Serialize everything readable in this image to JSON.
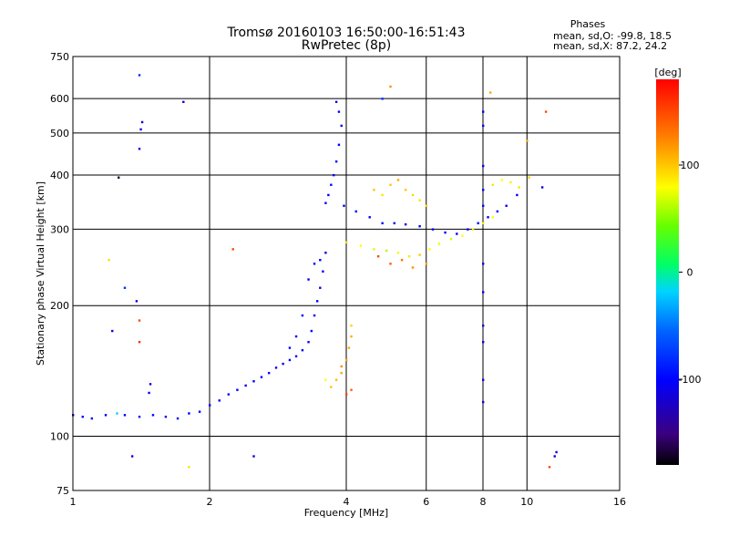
{
  "chart_data": {
    "type": "scatter",
    "title": "Tromsø 20160103 16:50:00-16:51:43",
    "subtitle": "RwPretec (8p)",
    "xlabel": "Frequency [MHz]",
    "ylabel": "Stationary phase Virtual Height [km]",
    "x_scale": "log2",
    "y_scale": "log",
    "xlim": [
      1,
      16
    ],
    "ylim": [
      75,
      750
    ],
    "x_ticks": [
      1,
      2,
      4,
      6,
      8,
      10,
      16
    ],
    "x_tick_labels": [
      "1",
      "2",
      "4",
      "6",
      "8",
      "10",
      "16"
    ],
    "y_ticks": [
      75,
      100,
      200,
      300,
      400,
      500,
      600,
      750
    ],
    "y_tick_labels": [
      "75",
      "100",
      "200",
      "300",
      "400",
      "500",
      "600",
      "750"
    ],
    "grid": true,
    "stats": {
      "heading": "Phases",
      "line_o": "mean, sd,O: -99.8, 18.5",
      "line_x": "mean, sd,X:  87.2, 24.2"
    },
    "colorbar": {
      "label": "[deg]",
      "min": -180,
      "max": 180,
      "ticks": [
        100,
        0,
        -100
      ],
      "tick_labels": [
        "100",
        "0",
        "-100"
      ]
    },
    "series": [
      {
        "points": [
          [
            1.0,
            112,
            -100
          ],
          [
            1.05,
            111,
            -100
          ],
          [
            1.1,
            110,
            -100
          ],
          [
            1.18,
            112,
            -100
          ],
          [
            1.25,
            113,
            -20
          ],
          [
            1.3,
            112,
            -100
          ],
          [
            1.4,
            111,
            -100
          ],
          [
            1.5,
            112,
            -100
          ],
          [
            1.6,
            111,
            -100
          ],
          [
            1.7,
            110,
            -100
          ],
          [
            1.8,
            113,
            -100
          ],
          [
            1.9,
            114,
            -100
          ],
          [
            2.0,
            118,
            -100
          ],
          [
            2.1,
            121,
            -100
          ],
          [
            2.2,
            125,
            -100
          ],
          [
            2.3,
            128,
            -100
          ],
          [
            2.4,
            131,
            -100
          ],
          [
            2.5,
            134,
            -100
          ],
          [
            2.6,
            137,
            -100
          ],
          [
            2.7,
            140,
            -100
          ],
          [
            2.8,
            144,
            -100
          ],
          [
            2.9,
            147,
            -100
          ],
          [
            3.0,
            150,
            -100
          ],
          [
            3.1,
            153,
            -100
          ],
          [
            3.2,
            158,
            -100
          ],
          [
            3.3,
            165,
            -100
          ],
          [
            3.35,
            175,
            -100
          ],
          [
            3.4,
            190,
            -100
          ],
          [
            3.45,
            205,
            -100
          ],
          [
            3.5,
            220,
            -100
          ],
          [
            3.55,
            240,
            -100
          ],
          [
            3.6,
            265,
            -110
          ],
          [
            3.2,
            190,
            -100
          ],
          [
            3.4,
            250,
            -100
          ],
          [
            3.5,
            255,
            -100
          ],
          [
            3.3,
            230,
            -100
          ],
          [
            3.6,
            345,
            -100
          ],
          [
            3.65,
            360,
            -100
          ],
          [
            3.7,
            380,
            -100
          ],
          [
            3.75,
            400,
            -100
          ],
          [
            3.8,
            430,
            -100
          ],
          [
            3.85,
            470,
            -100
          ],
          [
            3.9,
            520,
            -100
          ],
          [
            3.85,
            560,
            -100
          ],
          [
            3.95,
            340,
            -100
          ],
          [
            4.2,
            330,
            -100
          ],
          [
            4.5,
            320,
            -100
          ],
          [
            4.8,
            310,
            -100
          ],
          [
            5.1,
            310,
            -100
          ],
          [
            5.4,
            308,
            -100
          ],
          [
            5.8,
            305,
            -100
          ],
          [
            6.2,
            300,
            -100
          ],
          [
            6.6,
            295,
            -100
          ],
          [
            7.0,
            293,
            -100
          ],
          [
            7.4,
            300,
            -100
          ],
          [
            7.8,
            310,
            -100
          ],
          [
            8.2,
            320,
            -100
          ],
          [
            8.6,
            330,
            -100
          ],
          [
            9.0,
            340,
            -100
          ],
          [
            9.5,
            360,
            -100
          ],
          [
            4.0,
            280,
            90
          ],
          [
            4.3,
            275,
            80
          ],
          [
            4.6,
            270,
            70
          ],
          [
            4.9,
            268,
            60
          ],
          [
            5.2,
            265,
            75
          ],
          [
            5.5,
            260,
            90
          ],
          [
            5.8,
            262,
            100
          ],
          [
            6.1,
            270,
            80
          ],
          [
            6.4,
            278,
            75
          ],
          [
            6.8,
            285,
            70
          ],
          [
            7.2,
            290,
            80
          ],
          [
            7.6,
            300,
            90
          ],
          [
            8.0,
            310,
            85
          ],
          [
            8.4,
            320,
            80
          ],
          [
            4.7,
            260,
            150
          ],
          [
            5.0,
            250,
            140
          ],
          [
            5.3,
            255,
            130
          ],
          [
            5.6,
            245,
            120
          ],
          [
            6.0,
            250,
            110
          ],
          [
            3.7,
            130,
            100
          ],
          [
            3.8,
            135,
            105
          ],
          [
            3.9,
            140,
            110
          ],
          [
            4.0,
            150,
            110
          ],
          [
            4.05,
            160,
            110
          ],
          [
            4.1,
            170,
            110
          ],
          [
            4.0,
            125,
            150
          ],
          [
            4.1,
            128,
            140
          ],
          [
            3.6,
            135,
            80
          ],
          [
            3.9,
            145,
            120
          ],
          [
            4.1,
            180,
            95
          ],
          [
            4.6,
            370,
            100
          ],
          [
            4.8,
            360,
            90
          ],
          [
            5.0,
            380,
            100
          ],
          [
            5.2,
            390,
            110
          ],
          [
            5.4,
            370,
            100
          ],
          [
            5.6,
            360,
            95
          ],
          [
            5.8,
            350,
            90
          ],
          [
            6.0,
            340,
            95
          ],
          [
            8.4,
            380,
            90
          ],
          [
            8.8,
            390,
            80
          ],
          [
            9.2,
            385,
            85
          ],
          [
            9.6,
            375,
            90
          ],
          [
            10.1,
            395,
            95
          ],
          [
            8.0,
            340,
            -100
          ],
          [
            8.0,
            370,
            -100
          ],
          [
            8.0,
            420,
            -100
          ],
          [
            8.0,
            560,
            -100
          ],
          [
            8.0,
            520,
            -100
          ],
          [
            8.0,
            250,
            -110
          ],
          [
            8.0,
            215,
            -110
          ],
          [
            8.0,
            180,
            -110
          ],
          [
            8.0,
            165,
            -110
          ],
          [
            8.0,
            135,
            -110
          ],
          [
            8.0,
            120,
            -110
          ],
          [
            1.4,
            680,
            -80
          ],
          [
            1.42,
            530,
            -110
          ],
          [
            1.41,
            510,
            -110
          ],
          [
            1.4,
            460,
            -110
          ],
          [
            1.38,
            205,
            -110
          ],
          [
            1.35,
            90,
            -110
          ],
          [
            1.4,
            185,
            150
          ],
          [
            1.4,
            165,
            160
          ],
          [
            1.48,
            132,
            -110
          ],
          [
            1.47,
            126,
            -110
          ],
          [
            1.2,
            255,
            90
          ],
          [
            1.22,
            175,
            -110
          ],
          [
            1.3,
            220,
            -80
          ],
          [
            1.26,
            395,
            -170
          ],
          [
            1.75,
            590,
            -110
          ],
          [
            1.8,
            85,
            90
          ],
          [
            2.25,
            270,
            150
          ],
          [
            2.5,
            90,
            -110
          ],
          [
            3.8,
            590,
            -110
          ],
          [
            4.8,
            600,
            -80
          ],
          [
            5.0,
            640,
            120
          ],
          [
            8.3,
            620,
            110
          ],
          [
            10.0,
            480,
            110
          ],
          [
            11.0,
            560,
            150
          ],
          [
            11.2,
            85,
            150
          ],
          [
            11.5,
            90,
            -110
          ],
          [
            11.6,
            92,
            -110
          ],
          [
            10.8,
            375,
            -110
          ],
          [
            3.1,
            170,
            -100
          ],
          [
            3.0,
            160,
            -100
          ]
        ]
      }
    ]
  }
}
